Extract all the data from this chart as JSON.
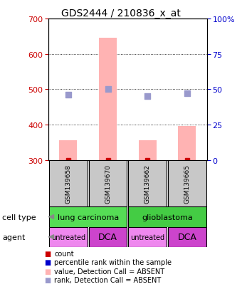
{
  "title": "GDS2444 / 210836_x_at",
  "samples": [
    "GSM139658",
    "GSM139670",
    "GSM139662",
    "GSM139665"
  ],
  "bar_values": [
    355,
    645,
    355,
    395
  ],
  "bar_base": 300,
  "bar_color": "#ffb3b3",
  "rank_values": [
    46,
    50,
    45,
    47
  ],
  "rank_color": "#9999cc",
  "ylim_left": [
    300,
    700
  ],
  "ylim_right": [
    0,
    100
  ],
  "yticks_left": [
    300,
    400,
    500,
    600,
    700
  ],
  "yticks_right": [
    0,
    25,
    50,
    75,
    100
  ],
  "ytick_labels_right": [
    "0",
    "25",
    "50",
    "75",
    "100%"
  ],
  "left_tick_color": "#cc0000",
  "right_tick_color": "#0000cc",
  "grid_lines": [
    400,
    500,
    600
  ],
  "agent_labels": [
    "untreated",
    "DCA",
    "untreated",
    "DCA"
  ],
  "agent_colors": [
    "#ee88ee",
    "#cc44cc",
    "#ee88ee",
    "#cc44cc"
  ],
  "cell_type_groups": [
    {
      "label": "lung carcinoma",
      "span": [
        0,
        1
      ],
      "color": "#55dd55"
    },
    {
      "label": "glioblastoma",
      "span": [
        2,
        3
      ],
      "color": "#44cc44"
    }
  ],
  "sample_box_color": "#c8c8c8",
  "legend_items": [
    {
      "color": "#cc0000",
      "label": "count"
    },
    {
      "color": "#0000cc",
      "label": "percentile rank within the sample"
    },
    {
      "color": "#ffb3b3",
      "label": "value, Detection Call = ABSENT"
    },
    {
      "color": "#9999cc",
      "label": "rank, Detection Call = ABSENT"
    }
  ],
  "label_cell_type": "cell type",
  "label_agent": "agent",
  "x_positions": [
    0,
    1,
    2,
    3
  ],
  "bar_width": 0.45
}
